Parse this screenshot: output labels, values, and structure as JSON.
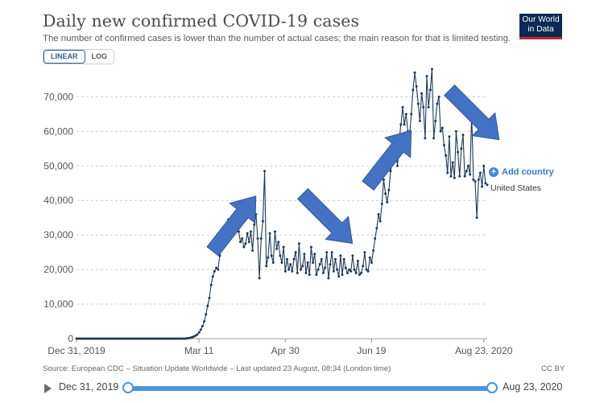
{
  "header": {
    "title": "Daily new confirmed COVID-19 cases",
    "subtitle": "The number of confirmed cases is lower than the number of actual cases; the main reason for that is limited testing.",
    "logo_line1": "Our World",
    "logo_line2": "in Data"
  },
  "scale_toggle": {
    "linear_label": "LINEAR",
    "log_label": "LOG",
    "selected": "LINEAR"
  },
  "legend": {
    "add_country_label": "Add country",
    "add_icon": "plus-circle-icon"
  },
  "footer": {
    "source": "Source: European CDC – Situation Update Worldwide – Last updated 23 August, 08:34 (London time)",
    "license": "CC BY"
  },
  "timeline": {
    "start_label": "Dec 31, 2019",
    "end_label": "Aug 23, 2020",
    "play_icon": "play-icon"
  },
  "colors": {
    "series": "#1d3a5c",
    "arrow": "#4472c4",
    "accent": "#3f87e0",
    "grid": "#cccccc"
  },
  "chart_data": {
    "type": "line",
    "title": "Daily new confirmed COVID-19 cases",
    "xlabel": "",
    "ylabel": "",
    "x_tick_labels": [
      "Dec 31, 2019",
      "Mar 11",
      "Apr 30",
      "Jun 19",
      "Aug 23, 2020"
    ],
    "x_tick_days": [
      0,
      71,
      121,
      171,
      236
    ],
    "y_ticks": [
      0,
      10000,
      20000,
      30000,
      40000,
      50000,
      60000,
      70000
    ],
    "y_tick_labels": [
      "0",
      "10,000",
      "20,000",
      "30,000",
      "40,000",
      "50,000",
      "60,000",
      "70,000"
    ],
    "ylim": [
      0,
      78000
    ],
    "grid": true,
    "series": [
      {
        "name": "United States",
        "values": [
          0,
          0,
          0,
          0,
          0,
          0,
          0,
          0,
          0,
          0,
          0,
          0,
          0,
          0,
          0,
          0,
          0,
          0,
          0,
          0,
          0,
          0,
          0,
          0,
          0,
          0,
          0,
          0,
          0,
          0,
          0,
          0,
          0,
          0,
          0,
          0,
          0,
          0,
          0,
          0,
          0,
          0,
          0,
          0,
          0,
          0,
          0,
          0,
          0,
          0,
          0,
          0,
          0,
          0,
          0,
          0,
          0,
          0,
          0,
          0,
          0,
          0,
          0,
          0,
          100,
          150,
          250,
          400,
          600,
          900,
          1200,
          1800,
          2600,
          3600,
          5000,
          7000,
          9500,
          11800,
          15500,
          18000,
          19500,
          20500,
          20000,
          24000,
          26000,
          29000,
          30500,
          32000,
          34500,
          29000,
          31000,
          32500,
          33000,
          35500,
          31000,
          28000,
          29000,
          26500,
          27500,
          30500,
          28000,
          31000,
          25500,
          33000,
          36000,
          29000,
          17500,
          29000,
          34000,
          48500,
          21000,
          23500,
          30500,
          24000,
          22000,
          31000,
          26000,
          28000,
          24000,
          22000,
          26500,
          19500,
          23000,
          20000,
          21500,
          19500,
          23000,
          25000,
          19000,
          27500,
          20000,
          21000,
          24500,
          19000,
          22000,
          18500,
          26500,
          22000,
          24500,
          18500,
          20000,
          21500,
          23000,
          19000,
          20500,
          25000,
          17500,
          21500,
          25000,
          19500,
          23000,
          20000,
          18000,
          24000,
          18500,
          23000,
          20500,
          19000,
          20000,
          19500,
          24000,
          20000,
          19000,
          22500,
          18500,
          19000,
          21000,
          25000,
          20000,
          19500,
          23500,
          22000,
          25500,
          29000,
          32000,
          36000,
          34000,
          39000,
          46000,
          42000,
          39500,
          43000,
          48500,
          51000,
          53000,
          54500,
          50000,
          58000,
          62000,
          67000,
          62000,
          65000,
          60000,
          59000,
          65000,
          72000,
          77000,
          73000,
          68000,
          63000,
          71000,
          67000,
          58000,
          76000,
          67000,
          72000,
          78000,
          58000,
          63000,
          68000,
          70000,
          60000,
          61000,
          56000,
          53000,
          48000,
          58500,
          47000,
          51000,
          46500,
          60000,
          54000,
          47000,
          55000,
          59000,
          47000,
          48500,
          50000,
          47500,
          65000,
          46000,
          45500,
          35000,
          46000,
          48000,
          44000,
          50000,
          45000,
          44500
        ]
      }
    ],
    "annotations": [
      {
        "type": "arrow",
        "direction": "up",
        "x_day": 91,
        "y": 33000
      },
      {
        "type": "arrow",
        "direction": "down",
        "x_day": 145,
        "y": 35000
      },
      {
        "type": "arrow",
        "direction": "up",
        "x_day": 181,
        "y": 52000
      },
      {
        "type": "arrow",
        "direction": "down",
        "x_day": 230,
        "y": 65000
      }
    ]
  }
}
